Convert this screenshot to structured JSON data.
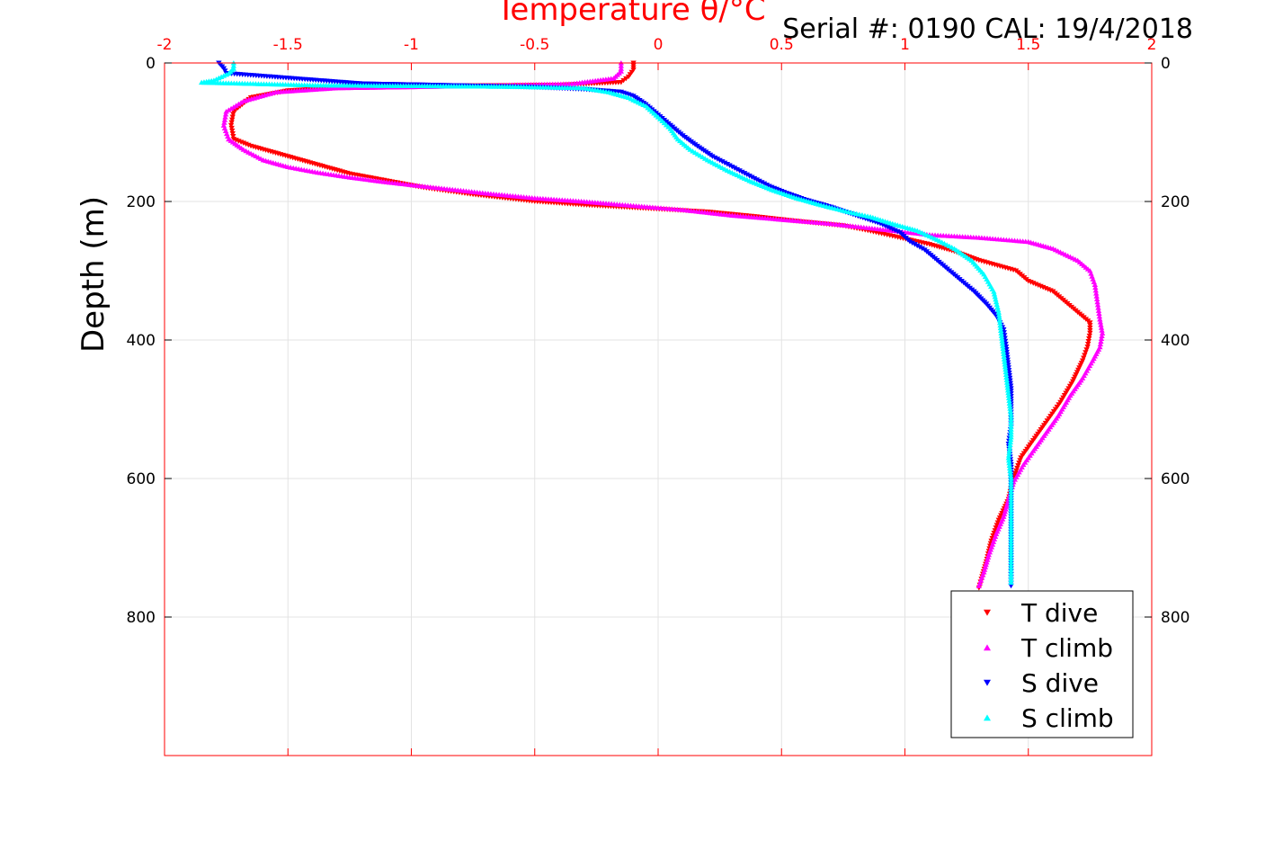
{
  "header_text": "Serial #: 0190  CAL: 19/4/2018",
  "chart_data": {
    "type": "scatter",
    "xlabel": "Temperature θ/°C",
    "ylabel": "Depth (m)",
    "xlim": [
      -2,
      2
    ],
    "ylim": [
      1000,
      0
    ],
    "y_reversed": true,
    "x_axis_position": "top",
    "x_ticks": [
      "-2",
      "-1.5",
      "-1",
      "-0.5",
      "0",
      "0.5",
      "1",
      "1.5",
      "2"
    ],
    "x_tick_values": [
      -2,
      -1.5,
      -1,
      -0.5,
      0,
      0.5,
      1,
      1.5,
      2
    ],
    "y_ticks": [
      "0",
      "200",
      "400",
      "600",
      "800"
    ],
    "y_tick_values": [
      0,
      200,
      400,
      600,
      800
    ],
    "y_ticks_right": true,
    "grid": true,
    "legend_position": "bottom-right",
    "series": [
      {
        "name": "T dive",
        "color": "#ff0000",
        "marker": "triangle-down",
        "points": [
          [
            -0.1,
            0
          ],
          [
            -0.1,
            10
          ],
          [
            -0.12,
            20
          ],
          [
            -0.15,
            28
          ],
          [
            -0.4,
            32
          ],
          [
            -0.8,
            33
          ],
          [
            -1.2,
            34
          ],
          [
            -1.5,
            40
          ],
          [
            -1.65,
            50
          ],
          [
            -1.72,
            70
          ],
          [
            -1.73,
            90
          ],
          [
            -1.72,
            110
          ],
          [
            -1.65,
            120
          ],
          [
            -1.55,
            130
          ],
          [
            -1.45,
            140
          ],
          [
            -1.35,
            150
          ],
          [
            -1.25,
            160
          ],
          [
            -1.1,
            170
          ],
          [
            -0.95,
            180
          ],
          [
            -0.75,
            190
          ],
          [
            -0.5,
            200
          ],
          [
            -0.3,
            205
          ],
          [
            -0.05,
            210
          ],
          [
            0.2,
            215
          ],
          [
            0.4,
            222
          ],
          [
            0.55,
            228
          ],
          [
            0.75,
            235
          ],
          [
            0.85,
            242
          ],
          [
            0.95,
            250
          ],
          [
            1.1,
            262
          ],
          [
            1.2,
            272
          ],
          [
            1.3,
            285
          ],
          [
            1.45,
            300
          ],
          [
            1.5,
            315
          ],
          [
            1.6,
            330
          ],
          [
            1.65,
            345
          ],
          [
            1.7,
            360
          ],
          [
            1.75,
            375
          ],
          [
            1.75,
            390
          ],
          [
            1.74,
            410
          ],
          [
            1.72,
            430
          ],
          [
            1.68,
            460
          ],
          [
            1.63,
            490
          ],
          [
            1.57,
            520
          ],
          [
            1.52,
            545
          ],
          [
            1.47,
            570
          ],
          [
            1.44,
            600
          ],
          [
            1.42,
            630
          ],
          [
            1.38,
            660
          ],
          [
            1.35,
            690
          ],
          [
            1.33,
            720
          ],
          [
            1.31,
            745
          ],
          [
            1.3,
            758
          ]
        ]
      },
      {
        "name": "T climb",
        "color": "#ff00ff",
        "marker": "triangle-up",
        "points": [
          [
            -0.15,
            0
          ],
          [
            -0.15,
            12
          ],
          [
            -0.18,
            22
          ],
          [
            -0.35,
            30
          ],
          [
            -0.9,
            34
          ],
          [
            -1.3,
            36
          ],
          [
            -1.55,
            42
          ],
          [
            -1.68,
            55
          ],
          [
            -1.75,
            70
          ],
          [
            -1.76,
            90
          ],
          [
            -1.74,
            110
          ],
          [
            -1.68,
            125
          ],
          [
            -1.6,
            140
          ],
          [
            -1.5,
            150
          ],
          [
            -1.38,
            158
          ],
          [
            -1.25,
            165
          ],
          [
            -1.1,
            172
          ],
          [
            -0.9,
            180
          ],
          [
            -0.7,
            188
          ],
          [
            -0.5,
            195
          ],
          [
            -0.3,
            200
          ],
          [
            -0.1,
            206
          ],
          [
            0.1,
            212
          ],
          [
            0.3,
            220
          ],
          [
            0.5,
            226
          ],
          [
            0.7,
            232
          ],
          [
            0.9,
            240
          ],
          [
            1.1,
            248
          ],
          [
            1.3,
            252
          ],
          [
            1.5,
            258
          ],
          [
            1.6,
            268
          ],
          [
            1.7,
            285
          ],
          [
            1.75,
            300
          ],
          [
            1.77,
            320
          ],
          [
            1.78,
            345
          ],
          [
            1.79,
            370
          ],
          [
            1.8,
            390
          ],
          [
            1.79,
            410
          ],
          [
            1.76,
            430
          ],
          [
            1.72,
            455
          ],
          [
            1.67,
            480
          ],
          [
            1.62,
            510
          ],
          [
            1.57,
            535
          ],
          [
            1.52,
            560
          ],
          [
            1.48,
            580
          ],
          [
            1.44,
            605
          ],
          [
            1.42,
            630
          ],
          [
            1.4,
            655
          ],
          [
            1.37,
            680
          ],
          [
            1.34,
            710
          ],
          [
            1.32,
            735
          ],
          [
            1.3,
            755
          ]
        ]
      },
      {
        "name": "S dive",
        "color": "#0000ff",
        "marker": "triangle-down",
        "points": [
          [
            -1.78,
            0
          ],
          [
            -1.76,
            8
          ],
          [
            -1.75,
            15
          ],
          [
            -1.2,
            30
          ],
          [
            -0.9,
            32
          ],
          [
            -0.5,
            35
          ],
          [
            -0.3,
            38
          ],
          [
            -0.15,
            42
          ],
          [
            -0.1,
            48
          ],
          [
            -0.05,
            60
          ],
          [
            0.0,
            75
          ],
          [
            0.05,
            90
          ],
          [
            0.1,
            105
          ],
          [
            0.15,
            118
          ],
          [
            0.22,
            135
          ],
          [
            0.3,
            150
          ],
          [
            0.38,
            165
          ],
          [
            0.45,
            178
          ],
          [
            0.52,
            188
          ],
          [
            0.6,
            198
          ],
          [
            0.7,
            208
          ],
          [
            0.8,
            220
          ],
          [
            0.9,
            232
          ],
          [
            0.98,
            245
          ],
          [
            1.02,
            258
          ],
          [
            1.08,
            270
          ],
          [
            1.13,
            285
          ],
          [
            1.18,
            300
          ],
          [
            1.23,
            315
          ],
          [
            1.28,
            330
          ],
          [
            1.33,
            348
          ],
          [
            1.37,
            365
          ],
          [
            1.4,
            385
          ],
          [
            1.41,
            410
          ],
          [
            1.42,
            440
          ],
          [
            1.43,
            470
          ],
          [
            1.43,
            500
          ],
          [
            1.43,
            525
          ],
          [
            1.42,
            550
          ],
          [
            1.43,
            580
          ],
          [
            1.43,
            610
          ],
          [
            1.43,
            640
          ],
          [
            1.43,
            670
          ],
          [
            1.43,
            700
          ],
          [
            1.43,
            730
          ],
          [
            1.43,
            755
          ]
        ]
      },
      {
        "name": "S climb",
        "color": "#00ffff",
        "marker": "triangle-up",
        "points": [
          [
            -1.72,
            0
          ],
          [
            -1.72,
            8
          ],
          [
            -1.74,
            15
          ],
          [
            -1.8,
            25
          ],
          [
            -1.85,
            28
          ],
          [
            -1.4,
            32
          ],
          [
            -1.0,
            33
          ],
          [
            -0.6,
            34
          ],
          [
            -0.3,
            36
          ],
          [
            -0.2,
            42
          ],
          [
            -0.12,
            50
          ],
          [
            -0.05,
            62
          ],
          [
            0.0,
            78
          ],
          [
            0.05,
            95
          ],
          [
            0.08,
            110
          ],
          [
            0.13,
            125
          ],
          [
            0.2,
            140
          ],
          [
            0.28,
            155
          ],
          [
            0.37,
            170
          ],
          [
            0.46,
            183
          ],
          [
            0.56,
            195
          ],
          [
            0.66,
            205
          ],
          [
            0.76,
            214
          ],
          [
            0.86,
            222
          ],
          [
            0.95,
            232
          ],
          [
            1.05,
            242
          ],
          [
            1.13,
            255
          ],
          [
            1.2,
            268
          ],
          [
            1.27,
            285
          ],
          [
            1.32,
            305
          ],
          [
            1.36,
            330
          ],
          [
            1.38,
            360
          ],
          [
            1.39,
            390
          ],
          [
            1.4,
            420
          ],
          [
            1.41,
            450
          ],
          [
            1.42,
            480
          ],
          [
            1.43,
            510
          ],
          [
            1.43,
            540
          ],
          [
            1.42,
            570
          ],
          [
            1.43,
            600
          ],
          [
            1.43,
            630
          ],
          [
            1.43,
            660
          ],
          [
            1.43,
            690
          ],
          [
            1.43,
            720
          ],
          [
            1.43,
            750
          ]
        ]
      }
    ]
  }
}
